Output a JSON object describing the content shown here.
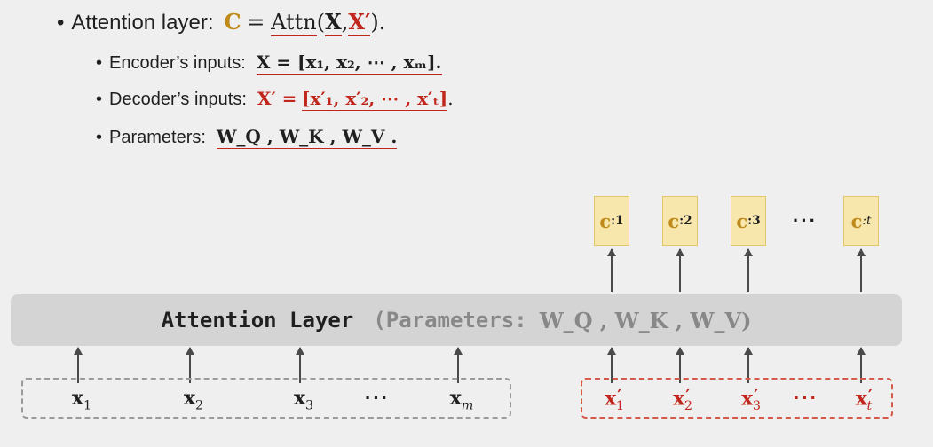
{
  "bullets": {
    "main": {
      "label": "Attention layer:",
      "formula_lhs": "C",
      "formula_eq": "=",
      "formula_fn": "Attn",
      "formula_open": "(",
      "formula_arg1": "X",
      "formula_comma": ",",
      "formula_arg2": "X′",
      "formula_close": ")."
    },
    "encoder": {
      "label": "Encoder’s inputs:",
      "formula": "X = [x₁, x₂, ⋯ , xₘ]."
    },
    "decoder": {
      "label": "Decoder’s inputs:",
      "formula_lhs": "X′ =",
      "formula_rhs": "[x′₁, x′₂, ⋯ , x′ₜ]",
      "formula_end": "."
    },
    "parameters": {
      "label": "Parameters:",
      "formula": "W_Q ,  W_K ,  W_V ."
    }
  },
  "diagram": {
    "attention_layer": {
      "title": "Attention Layer",
      "params_prefix": "(Parameters:",
      "params": "W_Q ,  W_K ,  W_V)"
    },
    "encoder_tokens": [
      {
        "base": "x",
        "sub": "1"
      },
      {
        "base": "x",
        "sub": "2"
      },
      {
        "base": "x",
        "sub": "3"
      },
      {
        "base": "x",
        "sub": "m"
      }
    ],
    "encoder_ellipsis": "···",
    "decoder_tokens": [
      {
        "base": "x",
        "sub": "1"
      },
      {
        "base": "x",
        "sub": "2"
      },
      {
        "base": "x",
        "sub": "3"
      },
      {
        "base": "x",
        "sub": "t"
      }
    ],
    "decoder_ellipsis": "···",
    "context_vectors": [
      {
        "base": "c",
        "sub": ":1"
      },
      {
        "base": "c",
        "sub": ":2"
      },
      {
        "base": "c",
        "sub": ":3"
      },
      {
        "base": "c",
        "sub": ":t"
      }
    ],
    "context_ellipsis": "···"
  },
  "colors": {
    "context_highlight": "#c08a1a",
    "decoder_red": "#c0261c",
    "box_fill": "#f7e7ad",
    "layer_fill": "#d4d4d4"
  }
}
